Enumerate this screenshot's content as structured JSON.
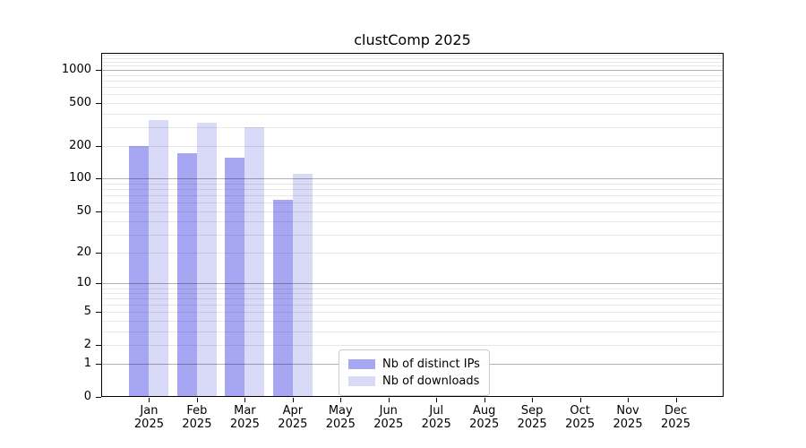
{
  "title": "clustComp 2025",
  "chart_data": {
    "type": "bar",
    "title": "clustComp 2025",
    "categories": [
      "Jan",
      "Feb",
      "Mar",
      "Apr",
      "May",
      "Jun",
      "Jul",
      "Aug",
      "Sep",
      "Oct",
      "Nov",
      "Dec"
    ],
    "x_sublabel_year": "2025",
    "series": [
      {
        "name": "Nb of distinct IPs",
        "color": "#a6a6f2",
        "values": [
          200,
          172,
          157,
          64,
          0,
          0,
          0,
          0,
          0,
          0,
          0,
          0
        ]
      },
      {
        "name": "Nb of downloads",
        "color": "#d9d9f8",
        "values": [
          350,
          328,
          299,
          111,
          0,
          0,
          0,
          0,
          0,
          0,
          0,
          0
        ]
      }
    ],
    "xlabel": "",
    "ylabel": "",
    "y_scale": "log(x+1)",
    "y_ticks": [
      0,
      1,
      2,
      5,
      10,
      20,
      50,
      100,
      200,
      500,
      1000
    ],
    "y_major_gridlines": [
      1,
      10,
      100,
      1000
    ],
    "ylim": [
      0,
      1450
    ],
    "grid": "on",
    "legend_position": "bottom-center-inside"
  },
  "legend": {
    "items": [
      {
        "label": "Nb of distinct IPs",
        "color": "#a6a6f2"
      },
      {
        "label": "Nb of downloads",
        "color": "#d9d9f8"
      }
    ]
  },
  "colors": {
    "background": "#ffffff",
    "bar_ips": "#a6a6f2",
    "bar_downloads": "#d9d9f8",
    "axis": "#000000",
    "major_grid": "rgba(0,0,0,0.30)",
    "minor_grid": "rgba(0,0,0,0.09)",
    "legend_border": "#cccccc",
    "text": "#000000"
  }
}
